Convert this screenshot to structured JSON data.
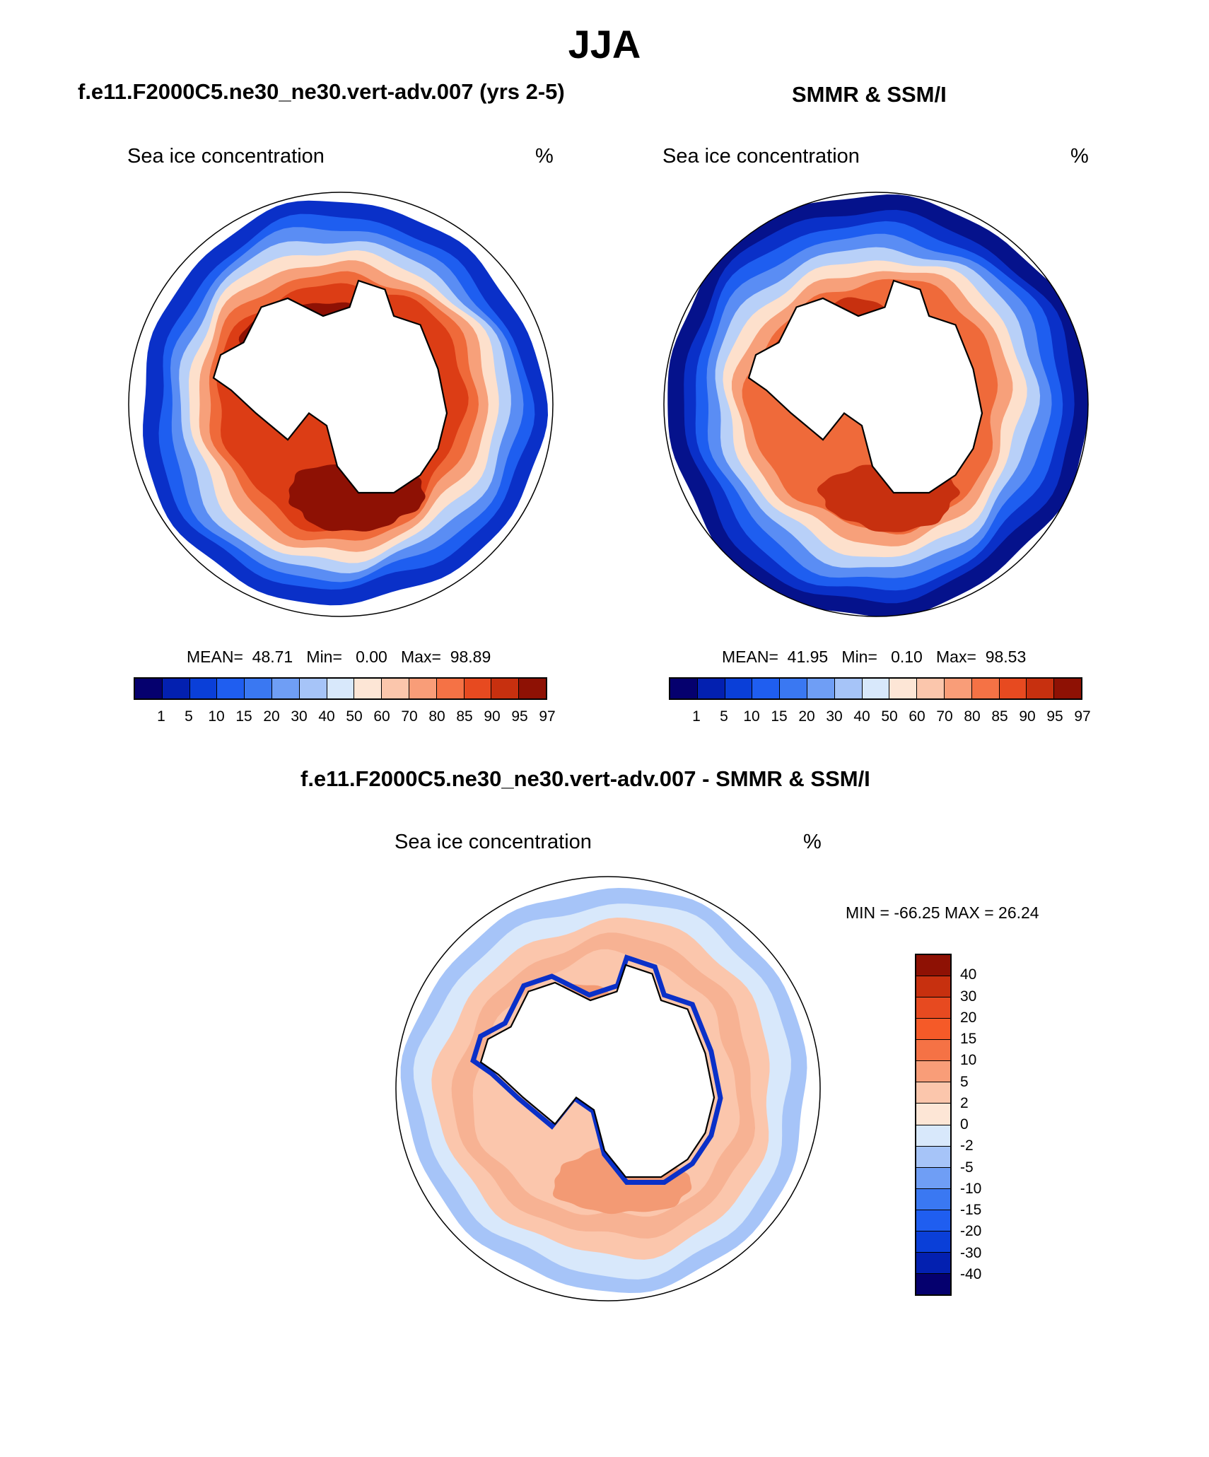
{
  "figure": {
    "title": "JJA",
    "left_panel_title": "f.e11.F2000C5.ne30_ne30.vert-adv.007 (yrs 2-5)",
    "right_panel_title": "SMMR & SSM/I",
    "diff_panel_title": "f.e11.F2000C5.ne30_ne30.vert-adv.007 - SMMR & SSM/I"
  },
  "panels": {
    "model": {
      "variable": "Sea ice concentration",
      "units": "%",
      "mean_label": "MEAN=",
      "mean": "48.71",
      "min_label": "Min=",
      "min": "0.00",
      "max_label": "Max=",
      "max": "98.89"
    },
    "obs": {
      "variable": "Sea ice concentration",
      "units": "%",
      "mean_label": "MEAN=",
      "mean": "41.95",
      "min_label": "Min=",
      "min": "0.10",
      "max_label": "Max=",
      "max": "98.53"
    },
    "diff": {
      "variable": "Sea ice concentration",
      "units": "%",
      "minmax_text": "MIN = -66.25 MAX =  26.24"
    }
  },
  "colorbars": {
    "concentration": {
      "colors": [
        "#05006e",
        "#0320b0",
        "#0a3fd8",
        "#1f5ef0",
        "#3a78f2",
        "#6f9ef5",
        "#a6c4f8",
        "#d8e8fb",
        "#fde6d6",
        "#fbc6ac",
        "#f99d78",
        "#f57245",
        "#e74a20",
        "#c7300f",
        "#8e1104"
      ],
      "labels": [
        "1",
        "5",
        "10",
        "15",
        "20",
        "30",
        "40",
        "50",
        "60",
        "70",
        "80",
        "85",
        "90",
        "95",
        "97"
      ]
    },
    "difference": {
      "colors": [
        "#8e1104",
        "#c7300f",
        "#e74a20",
        "#f55a28",
        "#f57245",
        "#f99d78",
        "#fbc6ac",
        "#fde6d6",
        "#d8e8fb",
        "#a6c4f8",
        "#6f9ef5",
        "#3a78f2",
        "#1f5ef0",
        "#0a3fd8",
        "#0320b0",
        "#05006e"
      ],
      "labels": [
        "40",
        "30",
        "20",
        "15",
        "10",
        "5",
        "2",
        "0",
        "-2",
        "-5",
        "-10",
        "-15",
        "-20",
        "-30",
        "-40"
      ]
    }
  },
  "map_layers": {
    "model": {
      "outer_ice_color": "#0a30c8",
      "rings": [
        "#1e5ef0",
        "#5a8df4",
        "#b8d0f8",
        "#fde0cc",
        "#f7a07a",
        "#ef6a3a",
        "#dc3d15"
      ],
      "core_color": "#8e1104",
      "land_color": "#ffffff"
    },
    "obs": {
      "outer_ice_color": "#05128c",
      "rings": [
        "#0a30c8",
        "#1e5ef0",
        "#5a8df4",
        "#b8d0f8",
        "#fde0cc",
        "#f7a07a",
        "#ef6a3a"
      ],
      "core_color": "#c7300f",
      "land_color": "#ffffff"
    },
    "diff": {
      "outer_color": "#a6c4f8",
      "rings": [
        "#d8e8fb",
        "#fbc6ac",
        "#f7b293",
        "#fbc6ac"
      ],
      "core_color": "#f39a74",
      "edge_color": "#0a30c8",
      "land_color": "#ffffff"
    }
  }
}
